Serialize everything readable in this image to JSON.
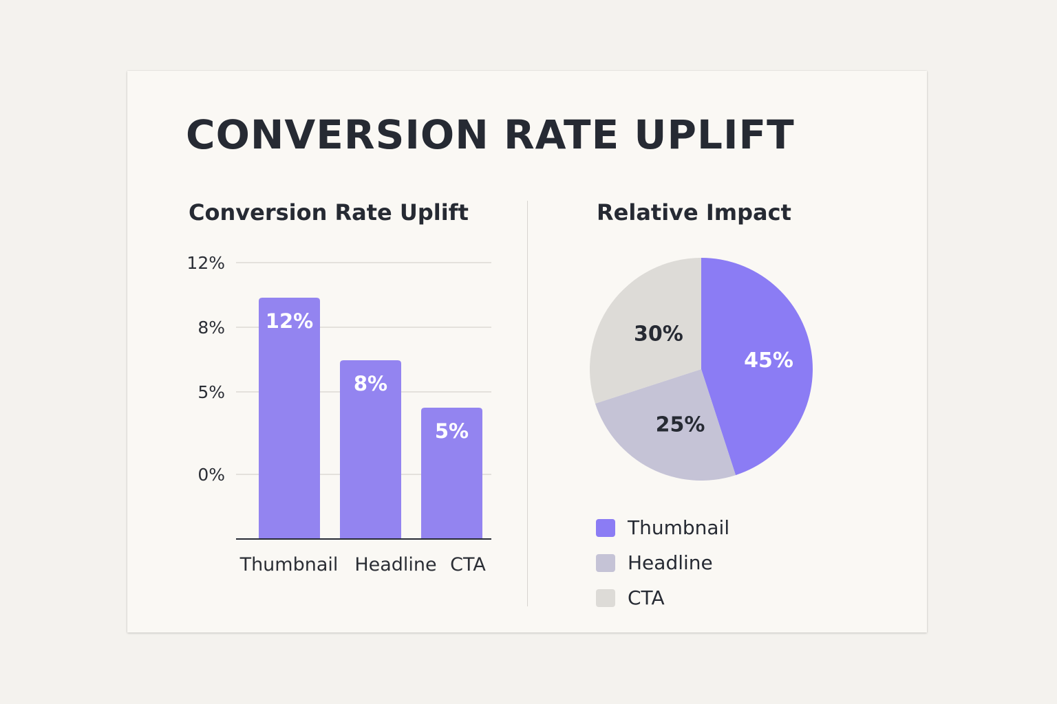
{
  "title": "CONVERSION RATE UPLIFT",
  "chart_data": [
    {
      "type": "bar",
      "title": "Conversion Rate Uplift",
      "categories": [
        "Thumbnail",
        "Headline",
        "CTA"
      ],
      "values": [
        12,
        8,
        5
      ],
      "data_labels": [
        "12%",
        "8%",
        "5%"
      ],
      "y_ticks": [
        {
          "label": "12%",
          "value": 12
        },
        {
          "label": "8%",
          "value": 8
        },
        {
          "label": "5%",
          "value": 5
        },
        {
          "label": "0%",
          "value": 0
        }
      ],
      "ylim": [
        0,
        12
      ],
      "grid": true,
      "color": "#9384f0"
    },
    {
      "type": "pie",
      "title": "Relative Impact",
      "labels": [
        "Thumbnail",
        "Headline",
        "CTA"
      ],
      "values": [
        45,
        25,
        30
      ],
      "data_labels": [
        "45%",
        "25%",
        "30%"
      ],
      "colors": [
        "#8b7cf4",
        "#c5c3d6",
        "#dddbd7"
      ],
      "label_colors": [
        "#ffffff",
        "#262a33",
        "#262a33"
      ],
      "legend_position": "bottom-left"
    }
  ]
}
